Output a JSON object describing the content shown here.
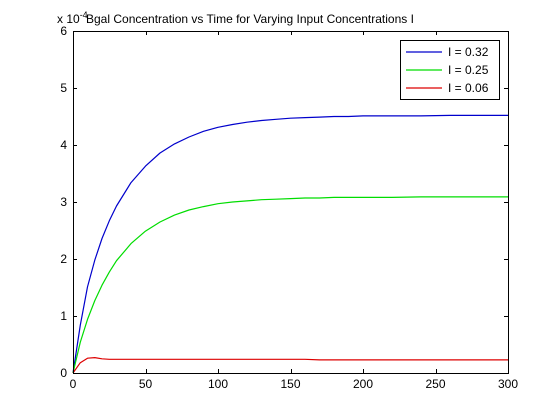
{
  "chart_data": {
    "type": "line",
    "title": "Bgal Concentration vs Time for Varying Input Concentrations I",
    "exponent_label": "x 10",
    "exponent_power": "-4",
    "xlabel": "",
    "ylabel": "",
    "xlim": [
      0,
      300
    ],
    "ylim": [
      0,
      6
    ],
    "xticks": [
      0,
      50,
      100,
      150,
      200,
      250,
      300
    ],
    "yticks": [
      0,
      1,
      2,
      3,
      4,
      5,
      6
    ],
    "grid": false,
    "legend_position": "top-right",
    "x": [
      0,
      5,
      10,
      15,
      20,
      25,
      30,
      40,
      50,
      60,
      70,
      80,
      90,
      100,
      110,
      120,
      130,
      140,
      150,
      160,
      170,
      180,
      190,
      200,
      220,
      240,
      260,
      280,
      300
    ],
    "series": [
      {
        "name": "I = 0.32",
        "color": "#0000cc",
        "values": [
          0,
          0.84,
          1.51,
          1.98,
          2.36,
          2.67,
          2.93,
          3.34,
          3.63,
          3.86,
          4.02,
          4.14,
          4.24,
          4.31,
          4.36,
          4.4,
          4.43,
          4.45,
          4.47,
          4.48,
          4.49,
          4.5,
          4.5,
          4.51,
          4.51,
          4.51,
          4.52,
          4.52,
          4.52
        ]
      },
      {
        "name": "I = 0.25",
        "color": "#00dd00",
        "values": [
          0,
          0.54,
          0.94,
          1.27,
          1.54,
          1.77,
          1.97,
          2.27,
          2.49,
          2.65,
          2.77,
          2.86,
          2.92,
          2.97,
          3.0,
          3.02,
          3.04,
          3.05,
          3.06,
          3.07,
          3.07,
          3.08,
          3.08,
          3.08,
          3.08,
          3.09,
          3.09,
          3.09,
          3.09
        ]
      },
      {
        "name": "I = 0.06",
        "color": "#dd0000",
        "values": [
          0,
          0.18,
          0.26,
          0.27,
          0.25,
          0.24,
          0.24,
          0.24,
          0.24,
          0.24,
          0.24,
          0.24,
          0.24,
          0.24,
          0.24,
          0.24,
          0.24,
          0.24,
          0.24,
          0.24,
          0.23,
          0.23,
          0.23,
          0.23,
          0.23,
          0.23,
          0.23,
          0.23,
          0.23
        ]
      }
    ]
  }
}
